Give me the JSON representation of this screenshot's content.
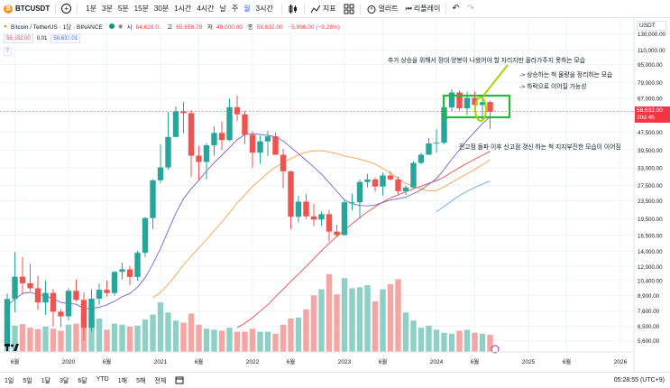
{
  "toolbar": {
    "symbol": "BTCUSDT",
    "symbol_badge": "₿",
    "add_label": "+",
    "timeframes": [
      "1분",
      "3분",
      "5분",
      "15분",
      "30분",
      "1시간",
      "4시간",
      "날",
      "주",
      "월",
      "3시간"
    ],
    "active_timeframe_index": 9,
    "indicators_label": "지표",
    "alert_label": "얼러트",
    "replay_label": "리플레이",
    "undo_label": "↶",
    "redo_label": "↷"
  },
  "legend": {
    "title": "Bitcoin / TetherUS · 1달 · BINANCE",
    "price_left": "58,632.00",
    "spread": "0.01",
    "price_right": "58,632.01",
    "help": "?",
    "ohlc": {
      "o_label": "시",
      "o": "64,628.01",
      "h_label": "고",
      "h": "65,659.78",
      "l_label": "저",
      "l": "49,000.00",
      "c_label": "종",
      "c": "58,632.00",
      "chg": "−5,996.00 (−9.28%)"
    }
  },
  "annotations": {
    "main": "추가 상승을 위해서 장대 양봉이 나왔어야 할 자리지만 올라가주지 못하는 모습",
    "note1": "-> 상승하는 척 물량을 정리하는 모습",
    "note2": "-> 하락으로 이어질 가능성",
    "bottom": "전고점 돌파 이후 신고점 갱신 하는 척 지지부진한 모습이 이어짐"
  },
  "price_axis": {
    "currency": "USDT",
    "current_price": "58,632.00",
    "countdown": "20d 4h",
    "ticks": [
      "130,000.00",
      "110,000.00",
      "95,000.00",
      "79,000.00",
      "67,000.00",
      "47,500.00",
      "39,500.00",
      "33,000.00",
      "27,500.00",
      "23,500.00",
      "19,500.00",
      "16,500.00",
      "14,000.00",
      "12,000.00",
      "10,400.00",
      "8,900.00",
      "7,600.00",
      "6,500.00",
      "5,600.00"
    ]
  },
  "time_axis": {
    "labels": [
      "6월",
      "2020",
      "6월",
      "2021",
      "6월",
      "2022",
      "6월",
      "2023",
      "6월",
      "2024",
      "6월",
      "2025",
      "6월",
      "2026"
    ]
  },
  "bottom_bar": {
    "ranges": [
      "1일",
      "5일",
      "1달",
      "3달",
      "6달",
      "YTD",
      "1해",
      "5해",
      "전체"
    ],
    "clock": "05:28:55 (UTC+9)"
  },
  "chart_data": {
    "type": "candlestick",
    "title": "Bitcoin / TetherUS · 1달 · BINANCE",
    "scale": "log",
    "ylim": [
      5000,
      150000
    ],
    "x_start": "2019-05",
    "x_end": "2026-06",
    "colors": {
      "up": "#26a69a",
      "down": "#ef5350",
      "ma_purple": "#7b5fc4",
      "ma_orange": "#f7a24b",
      "ma_red": "#e94b4b",
      "ma_blue": "#5ab0e0",
      "box": "#22bb33",
      "highlight": "#a6d800"
    },
    "candles": [
      {
        "t": "2019-05",
        "o": 5300,
        "h": 9100,
        "l": 5300,
        "c": 8600
      },
      {
        "t": "2019-06",
        "o": 8600,
        "h": 13900,
        "l": 7500,
        "c": 10800
      },
      {
        "t": "2019-07",
        "o": 10800,
        "h": 13200,
        "l": 9100,
        "c": 10100
      },
      {
        "t": "2019-08",
        "o": 10100,
        "h": 12300,
        "l": 9300,
        "c": 9600
      },
      {
        "t": "2019-09",
        "o": 9600,
        "h": 10900,
        "l": 7700,
        "c": 8300
      },
      {
        "t": "2019-10",
        "o": 8300,
        "h": 10400,
        "l": 7300,
        "c": 9150
      },
      {
        "t": "2019-11",
        "o": 9150,
        "h": 9500,
        "l": 6500,
        "c": 7550
      },
      {
        "t": "2019-12",
        "o": 7550,
        "h": 7750,
        "l": 6450,
        "c": 7200
      },
      {
        "t": "2020-01",
        "o": 7200,
        "h": 9600,
        "l": 6900,
        "c": 9350
      },
      {
        "t": "2020-02",
        "o": 9350,
        "h": 10500,
        "l": 8400,
        "c": 8520
      },
      {
        "t": "2020-03",
        "o": 8520,
        "h": 9200,
        "l": 5600,
        "c": 6400
      },
      {
        "t": "2020-04",
        "o": 6400,
        "h": 9500,
        "l": 6150,
        "c": 8620
      },
      {
        "t": "2020-05",
        "o": 8620,
        "h": 10070,
        "l": 8100,
        "c": 9450
      },
      {
        "t": "2020-06",
        "o": 9450,
        "h": 10380,
        "l": 8830,
        "c": 9140
      },
      {
        "t": "2020-07",
        "o": 9140,
        "h": 11450,
        "l": 8900,
        "c": 11350
      },
      {
        "t": "2020-08",
        "o": 11350,
        "h": 12480,
        "l": 10500,
        "c": 11650
      },
      {
        "t": "2020-09",
        "o": 11650,
        "h": 12070,
        "l": 9880,
        "c": 10780
      },
      {
        "t": "2020-10",
        "o": 10780,
        "h": 14100,
        "l": 10370,
        "c": 13800
      },
      {
        "t": "2020-11",
        "o": 13800,
        "h": 19900,
        "l": 13200,
        "c": 19700
      },
      {
        "t": "2020-12",
        "o": 19700,
        "h": 29300,
        "l": 17600,
        "c": 29000
      },
      {
        "t": "2021-01",
        "o": 29000,
        "h": 41950,
        "l": 28100,
        "c": 33100
      },
      {
        "t": "2021-02",
        "o": 33100,
        "h": 58350,
        "l": 32300,
        "c": 45200
      },
      {
        "t": "2021-03",
        "o": 45200,
        "h": 61780,
        "l": 45000,
        "c": 58800
      },
      {
        "t": "2021-04",
        "o": 58800,
        "h": 64850,
        "l": 47000,
        "c": 57700
      },
      {
        "t": "2021-05",
        "o": 57700,
        "h": 59500,
        "l": 30000,
        "c": 37300
      },
      {
        "t": "2021-06",
        "o": 37300,
        "h": 41300,
        "l": 28800,
        "c": 35000
      },
      {
        "t": "2021-07",
        "o": 35000,
        "h": 42450,
        "l": 29300,
        "c": 41500
      },
      {
        "t": "2021-08",
        "o": 41500,
        "h": 50500,
        "l": 37300,
        "c": 47100
      },
      {
        "t": "2021-09",
        "o": 47100,
        "h": 52900,
        "l": 39600,
        "c": 43800
      },
      {
        "t": "2021-10",
        "o": 43800,
        "h": 67000,
        "l": 43300,
        "c": 61300
      },
      {
        "t": "2021-11",
        "o": 61300,
        "h": 69000,
        "l": 53250,
        "c": 57000
      },
      {
        "t": "2021-12",
        "o": 57000,
        "h": 59100,
        "l": 42000,
        "c": 46200
      },
      {
        "t": "2022-01",
        "o": 46200,
        "h": 47990,
        "l": 32900,
        "c": 38500
      },
      {
        "t": "2022-02",
        "o": 38500,
        "h": 45800,
        "l": 34300,
        "c": 43200
      },
      {
        "t": "2022-03",
        "o": 43200,
        "h": 48200,
        "l": 37200,
        "c": 45500
      },
      {
        "t": "2022-04",
        "o": 45500,
        "h": 47400,
        "l": 37600,
        "c": 37650
      },
      {
        "t": "2022-05",
        "o": 37650,
        "h": 40000,
        "l": 26700,
        "c": 31800
      },
      {
        "t": "2022-06",
        "o": 31800,
        "h": 31900,
        "l": 17600,
        "c": 19950
      },
      {
        "t": "2022-07",
        "o": 19950,
        "h": 24700,
        "l": 18800,
        "c": 23300
      },
      {
        "t": "2022-08",
        "o": 23300,
        "h": 25200,
        "l": 19500,
        "c": 20050
      },
      {
        "t": "2022-09",
        "o": 20050,
        "h": 22800,
        "l": 18150,
        "c": 19400
      },
      {
        "t": "2022-10",
        "o": 19400,
        "h": 21100,
        "l": 18200,
        "c": 20500
      },
      {
        "t": "2022-11",
        "o": 20500,
        "h": 21450,
        "l": 15500,
        "c": 17150
      },
      {
        "t": "2022-12",
        "o": 17150,
        "h": 18400,
        "l": 16250,
        "c": 16550
      },
      {
        "t": "2023-01",
        "o": 16550,
        "h": 23950,
        "l": 16500,
        "c": 23150
      },
      {
        "t": "2023-02",
        "o": 23150,
        "h": 25250,
        "l": 21350,
        "c": 23150
      },
      {
        "t": "2023-03",
        "o": 23150,
        "h": 29200,
        "l": 19550,
        "c": 28500
      },
      {
        "t": "2023-04",
        "o": 28500,
        "h": 31000,
        "l": 26950,
        "c": 29250
      },
      {
        "t": "2023-05",
        "o": 29250,
        "h": 29850,
        "l": 25800,
        "c": 27200
      },
      {
        "t": "2023-06",
        "o": 27200,
        "h": 31400,
        "l": 24800,
        "c": 30450
      },
      {
        "t": "2023-07",
        "o": 30450,
        "h": 31800,
        "l": 28900,
        "c": 29250
      },
      {
        "t": "2023-08",
        "o": 29250,
        "h": 30250,
        "l": 25150,
        "c": 25950
      },
      {
        "t": "2023-09",
        "o": 25950,
        "h": 27500,
        "l": 24900,
        "c": 26950
      },
      {
        "t": "2023-10",
        "o": 26950,
        "h": 35200,
        "l": 26550,
        "c": 34650
      },
      {
        "t": "2023-11",
        "o": 34650,
        "h": 38450,
        "l": 34100,
        "c": 37700
      },
      {
        "t": "2023-12",
        "o": 37700,
        "h": 44700,
        "l": 37600,
        "c": 42300
      },
      {
        "t": "2024-01",
        "o": 42300,
        "h": 48950,
        "l": 38550,
        "c": 42600
      },
      {
        "t": "2024-02",
        "o": 42600,
        "h": 64000,
        "l": 41900,
        "c": 61200
      },
      {
        "t": "2024-03",
        "o": 61200,
        "h": 73800,
        "l": 59000,
        "c": 71300
      },
      {
        "t": "2024-04",
        "o": 71300,
        "h": 72800,
        "l": 59200,
        "c": 60650
      },
      {
        "t": "2024-05",
        "o": 60650,
        "h": 71950,
        "l": 56550,
        "c": 67500
      },
      {
        "t": "2024-06",
        "o": 67500,
        "h": 72000,
        "l": 58400,
        "c": 62700
      },
      {
        "t": "2024-07",
        "o": 62700,
        "h": 70000,
        "l": 53500,
        "c": 64600
      },
      {
        "t": "2024-08",
        "o": 64628.01,
        "h": 65659.78,
        "l": 49000,
        "c": 58632
      }
    ],
    "volumes": [
      5,
      5.2,
      5.5,
      4.8,
      4.5,
      5,
      4.6,
      4.2,
      5.4,
      5.6,
      7.6,
      6.4,
      6.6,
      4.4,
      5.6,
      5.4,
      5,
      5.2,
      6.4,
      7.4,
      9.8,
      7.8,
      6.2,
      5.8,
      7.6,
      5.4,
      4.6,
      4.4,
      4.2,
      4.8,
      4,
      4,
      4.6,
      4,
      4,
      3.6,
      5.4,
      6.6,
      6.8,
      8.4,
      11.2,
      12.4,
      15.4,
      11.4,
      14.6,
      12.6,
      12.8,
      13.2,
      10,
      12.4,
      13.4,
      14.4,
      7.8,
      6.2,
      4.8,
      5.2,
      4.4,
      3.8,
      3.6,
      4.2,
      4.4,
      3.8,
      3.6,
      3.4
    ],
    "ma_purple": [
      8000,
      8600,
      9100,
      9200,
      9000,
      8900,
      8600,
      8300,
      8200,
      8150,
      7800,
      7800,
      7900,
      8100,
      8400,
      8800,
      9100,
      9700,
      10700,
      12300,
      14400,
      17300,
      20700,
      24000,
      26600,
      29000,
      31900,
      34700,
      37500,
      40500,
      44000,
      46300,
      46700,
      46400,
      46000,
      45300,
      43400,
      40600,
      38100,
      35600,
      33200,
      30900,
      28300,
      25900,
      23700,
      22800,
      22400,
      22300,
      22500,
      23100,
      23700,
      24000,
      24400,
      25300,
      26300,
      27800,
      29500,
      32400,
      36000,
      39600,
      43800,
      47600,
      51800,
      55600
    ],
    "ma_orange": [
      null,
      null,
      null,
      null,
      null,
      null,
      null,
      null,
      null,
      null,
      null,
      null,
      null,
      null,
      null,
      null,
      null,
      null,
      null,
      8700,
      9200,
      10000,
      11000,
      12200,
      13300,
      14500,
      15800,
      17300,
      18900,
      20800,
      23000,
      25000,
      27200,
      29100,
      31300,
      33200,
      34800,
      36200,
      37600,
      38700,
      39200,
      39200,
      38800,
      38100,
      37200,
      36600,
      36000,
      35200,
      34200,
      32800,
      31200,
      29500,
      28100,
      27200,
      26500,
      26000,
      26100,
      27100,
      28400,
      29700,
      31000,
      32400,
      34000,
      35800
    ],
    "ma_red": [
      null,
      null,
      null,
      null,
      null,
      null,
      null,
      null,
      null,
      null,
      null,
      null,
      null,
      null,
      null,
      null,
      null,
      null,
      null,
      null,
      null,
      null,
      null,
      null,
      null,
      null,
      null,
      null,
      null,
      null,
      6400,
      6700,
      7100,
      7600,
      8100,
      8800,
      9500,
      10300,
      11100,
      12000,
      13000,
      14100,
      15200,
      16300,
      17400,
      18600,
      19800,
      21000,
      22100,
      23200,
      24200,
      25000,
      25800,
      26600,
      27300,
      28100,
      28900,
      30000,
      31500,
      33000,
      34500,
      36000,
      37500,
      39000
    ],
    "ma_blue": [
      null,
      null,
      null,
      null,
      null,
      null,
      null,
      null,
      null,
      null,
      null,
      null,
      null,
      null,
      null,
      null,
      null,
      null,
      null,
      null,
      null,
      null,
      null,
      null,
      null,
      null,
      null,
      null,
      null,
      null,
      null,
      null,
      null,
      null,
      null,
      null,
      null,
      null,
      null,
      null,
      null,
      null,
      null,
      null,
      null,
      null,
      null,
      null,
      null,
      null,
      null,
      null,
      null,
      null,
      null,
      null,
      21000,
      22200,
      23500,
      24800,
      25900,
      26900,
      27900,
      28800
    ]
  }
}
